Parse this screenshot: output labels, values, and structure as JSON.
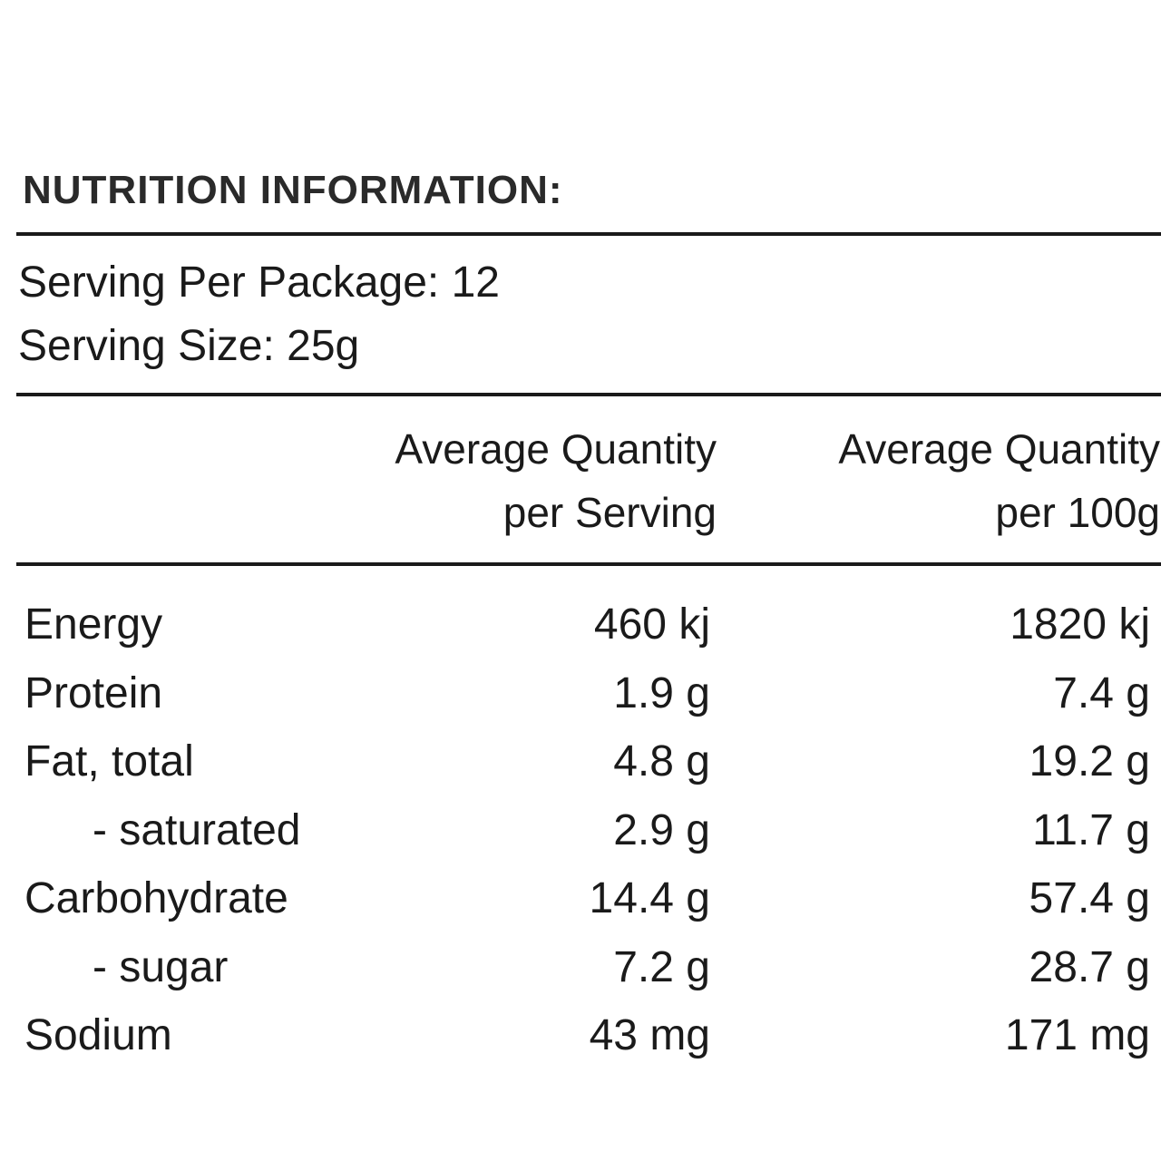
{
  "title": "NUTRITION INFORMATION:",
  "servings": [
    "Serving Per Package: 12",
    "Serving Size: 25g"
  ],
  "table": {
    "headers": [
      [
        "Average Quantity",
        "per Serving"
      ],
      [
        "Average Quantity",
        "per 100g"
      ]
    ],
    "rows": [
      [
        "Energy",
        "460 kj",
        "1820 kj"
      ],
      [
        "Protein",
        "1.9 g",
        "7.4 g"
      ],
      [
        "Fat, total",
        "4.8 g",
        "19.2 g"
      ],
      [
        "- saturated",
        "2.9 g",
        "11.7 g"
      ],
      [
        "Carbohydrate",
        "14.4 g",
        "57.4 g"
      ],
      [
        "- sugar",
        "7.2 g",
        "28.7 g"
      ],
      [
        "Sodium",
        "43 mg",
        "171 mg"
      ]
    ]
  }
}
